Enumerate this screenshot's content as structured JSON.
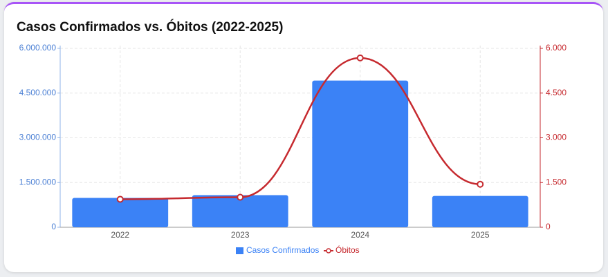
{
  "chart_data": {
    "type": "bar",
    "title": "Casos Confirmados vs. Óbitos (2022-2025)",
    "categories": [
      "2022",
      "2023",
      "2024",
      "2025"
    ],
    "series": [
      {
        "name": "Casos Confirmados",
        "type": "bar",
        "color": "#3b82f6",
        "values": [
          985000,
          1076000,
          4920000,
          1050000
        ]
      },
      {
        "name": "Óbitos",
        "type": "line",
        "axis": "y2",
        "color": "#c62a2f",
        "values": [
          939,
          1008,
          5679,
          1443
        ]
      }
    ],
    "ylim": [
      0,
      6000000
    ],
    "yticks": [
      0,
      {
        "value": 1500000,
        "label": "1.500.000"
      },
      {
        "value": 3000000,
        "label": "3.000.000"
      },
      {
        "value": 4500000,
        "label": "4.500.000"
      },
      {
        "value": 6000000,
        "label": "6.000.000"
      }
    ],
    "y2lim": [
      0,
      6000
    ],
    "y2ticks": [
      0,
      {
        "value": 1500,
        "label": "1.500"
      },
      {
        "value": 3000,
        "label": "3.000"
      },
      {
        "value": 4500,
        "label": "4.500"
      },
      {
        "value": 6000,
        "label": "6.000"
      }
    ],
    "grid": true,
    "legend": "bottom"
  }
}
